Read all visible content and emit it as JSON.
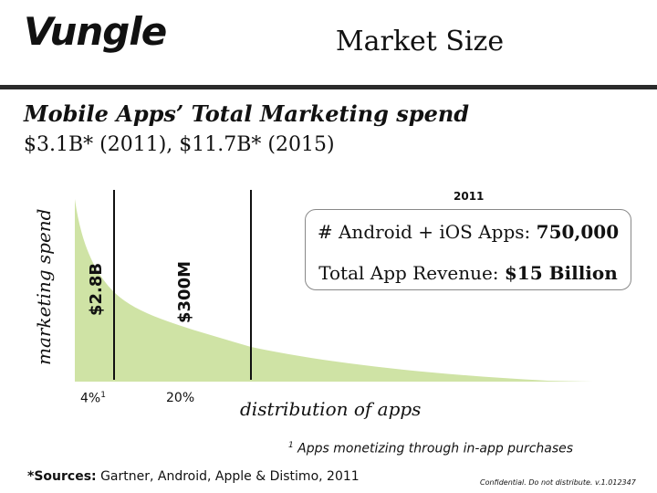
{
  "header": {
    "logo": "Vungle",
    "title": "Market Size"
  },
  "subhead": "Mobile Apps’ Total Marketing spend",
  "figures": "$3.1B* (2011), $11.7B* (2015)",
  "chart_data": {
    "type": "area",
    "ylabel": "marketing spend",
    "xlabel": "distribution of apps",
    "fill_color": "#cfe3a5",
    "segments": [
      {
        "x_tick": "4%",
        "x_tick_sup": "1",
        "value_label": "$2.8B"
      },
      {
        "x_tick": "20%",
        "value_label": "$300M"
      }
    ]
  },
  "infobox": {
    "year": "2011",
    "line1_label": "# Android + iOS Apps: ",
    "line1_value": "750,000",
    "line2_label": "Total App Revenue: ",
    "line2_value": "$15 Billion"
  },
  "footnote": {
    "marker": "1",
    "text": " Apps monetizing through in-app purchases"
  },
  "sources": {
    "label": "*Sources:",
    "text": " Gartner, Android, Apple & Distimo, 2011"
  },
  "confidential": "Confidential. Do not distribute. v.1.012347",
  "colors": {
    "bar": "#2b2b2b",
    "area": "#cfe3a5",
    "text": "#111111"
  }
}
